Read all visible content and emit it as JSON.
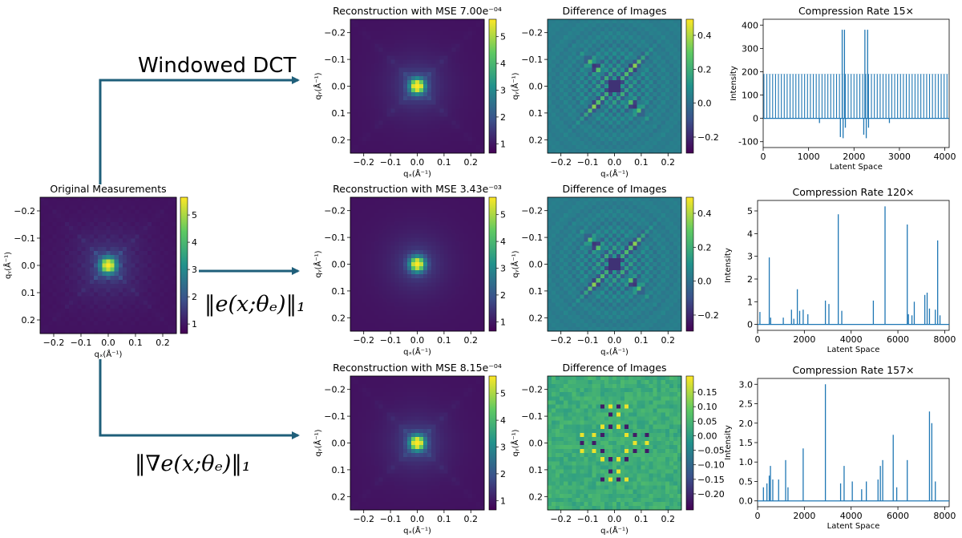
{
  "colors": {
    "arrow": "#1f5f7a",
    "line_series": "#1f77b4",
    "colormap": "viridis"
  },
  "methods": {
    "top": "Windowed DCT",
    "middle": "‖e(x;θₑ)‖₁",
    "bottom": "‖∇e(x;θₑ)‖₁"
  },
  "image_axes": {
    "xlabel": "qₓ(Å⁻¹)",
    "ylabel": "qᵧ(Å⁻¹)",
    "ticks": [
      "−0.2",
      "−0.1",
      "0.0",
      "0.1",
      "0.2"
    ]
  },
  "panels": {
    "original": {
      "title": "Original Measurements",
      "colorbar_ticks": [
        "1",
        "2",
        "3",
        "4",
        "5"
      ]
    },
    "rec_top": {
      "title": "Reconstruction with MSE 7.00e⁻⁰⁴",
      "colorbar_ticks": [
        "1",
        "2",
        "3",
        "4",
        "5"
      ]
    },
    "rec_mid": {
      "title": "Reconstruction with MSE 3.43e⁻⁰³",
      "colorbar_ticks": [
        "1",
        "2",
        "3",
        "4",
        "5"
      ]
    },
    "rec_bot": {
      "title": "Reconstruction with MSE 8.15e⁻⁰⁴",
      "colorbar_ticks": [
        "1",
        "2",
        "3",
        "4",
        "5"
      ]
    },
    "diff_top": {
      "title": "Difference of Images",
      "colorbar_ticks": [
        "0.4",
        "0.2",
        "0.0",
        "−0.2"
      ]
    },
    "diff_mid": {
      "title": "Difference of Images",
      "colorbar_ticks": [
        "0.4",
        "0.2",
        "0.0",
        "−0.2"
      ]
    },
    "diff_bot": {
      "title": "Difference of Images",
      "colorbar_ticks": [
        "0.15",
        "0.10",
        "0.05",
        "0.00",
        "−0.05",
        "−0.10",
        "−0.15",
        "−0.20"
      ]
    }
  },
  "chart_data": [
    {
      "type": "line",
      "title": "Compression Rate 15×",
      "xlabel": "Latent Space",
      "ylabel": "Intensity",
      "xlim": [
        0,
        4096
      ],
      "ylim": [
        -100,
        400
      ],
      "xticks": [
        0,
        1000,
        2000,
        3000,
        4000
      ],
      "yticks": [
        -100,
        0,
        100,
        200,
        300,
        400
      ],
      "baseline": 0,
      "regular_spikes": {
        "start": 0,
        "step": 64,
        "count": 64,
        "value": 190
      },
      "spikes": [
        {
          "x": 1740,
          "y": 380
        },
        {
          "x": 1790,
          "y": 380
        },
        {
          "x": 2240,
          "y": 380
        },
        {
          "x": 2300,
          "y": 380
        },
        {
          "x": 1700,
          "y": -80
        },
        {
          "x": 1760,
          "y": -85
        },
        {
          "x": 1810,
          "y": -40
        },
        {
          "x": 2215,
          "y": -70
        },
        {
          "x": 2270,
          "y": -85
        },
        {
          "x": 2320,
          "y": -40
        },
        {
          "x": 1240,
          "y": -20
        },
        {
          "x": 2780,
          "y": -20
        }
      ]
    },
    {
      "type": "line",
      "title": "Compression Rate 120×",
      "xlabel": "Latent Space",
      "ylabel": "Intensity",
      "xlim": [
        0,
        8192
      ],
      "ylim": [
        0,
        5.2
      ],
      "xticks": [
        0,
        2000,
        4000,
        6000,
        8000
      ],
      "yticks": [
        0,
        1,
        2,
        3,
        4,
        5
      ],
      "baseline": 0,
      "spikes": [
        {
          "x": 100,
          "y": 0.55
        },
        {
          "x": 500,
          "y": 2.95
        },
        {
          "x": 560,
          "y": 0.3
        },
        {
          "x": 1100,
          "y": 0.3
        },
        {
          "x": 1450,
          "y": 0.65
        },
        {
          "x": 1550,
          "y": 0.25
        },
        {
          "x": 1700,
          "y": 1.55
        },
        {
          "x": 1800,
          "y": 0.6
        },
        {
          "x": 1950,
          "y": 0.65
        },
        {
          "x": 2150,
          "y": 0.45
        },
        {
          "x": 2900,
          "y": 1.05
        },
        {
          "x": 3050,
          "y": 0.9
        },
        {
          "x": 3450,
          "y": 4.85
        },
        {
          "x": 3600,
          "y": 0.6
        },
        {
          "x": 4950,
          "y": 1.05
        },
        {
          "x": 5450,
          "y": 5.2
        },
        {
          "x": 6400,
          "y": 4.4
        },
        {
          "x": 6450,
          "y": 0.45
        },
        {
          "x": 6600,
          "y": 0.4
        },
        {
          "x": 6700,
          "y": 1.0
        },
        {
          "x": 7150,
          "y": 1.3
        },
        {
          "x": 7250,
          "y": 1.4
        },
        {
          "x": 7350,
          "y": 0.7
        },
        {
          "x": 7600,
          "y": 0.65
        },
        {
          "x": 7700,
          "y": 3.7
        },
        {
          "x": 7800,
          "y": 0.4
        }
      ]
    },
    {
      "type": "line",
      "title": "Compression Rate 157×",
      "xlabel": "Latent Space",
      "ylabel": "Intensity",
      "xlim": [
        0,
        8192
      ],
      "ylim": [
        0,
        3.0
      ],
      "xticks": [
        0,
        2000,
        4000,
        6000,
        8000
      ],
      "yticks": [
        0.0,
        0.5,
        1.0,
        1.5,
        2.0,
        2.5,
        3.0
      ],
      "baseline": 0,
      "spikes": [
        {
          "x": 250,
          "y": 0.35
        },
        {
          "x": 400,
          "y": 0.45
        },
        {
          "x": 500,
          "y": 0.65
        },
        {
          "x": 550,
          "y": 0.9
        },
        {
          "x": 650,
          "y": 0.55
        },
        {
          "x": 900,
          "y": 0.55
        },
        {
          "x": 1200,
          "y": 1.05
        },
        {
          "x": 1300,
          "y": 0.35
        },
        {
          "x": 1950,
          "y": 1.35
        },
        {
          "x": 2900,
          "y": 3.0
        },
        {
          "x": 3550,
          "y": 0.45
        },
        {
          "x": 3700,
          "y": 0.9
        },
        {
          "x": 4050,
          "y": 0.5
        },
        {
          "x": 4450,
          "y": 0.3
        },
        {
          "x": 4650,
          "y": 0.5
        },
        {
          "x": 5150,
          "y": 0.55
        },
        {
          "x": 5250,
          "y": 0.9
        },
        {
          "x": 5350,
          "y": 1.05
        },
        {
          "x": 5800,
          "y": 1.7
        },
        {
          "x": 5950,
          "y": 0.35
        },
        {
          "x": 6400,
          "y": 1.05
        },
        {
          "x": 7350,
          "y": 2.3
        },
        {
          "x": 7450,
          "y": 2.0
        },
        {
          "x": 7600,
          "y": 0.5
        }
      ]
    }
  ]
}
